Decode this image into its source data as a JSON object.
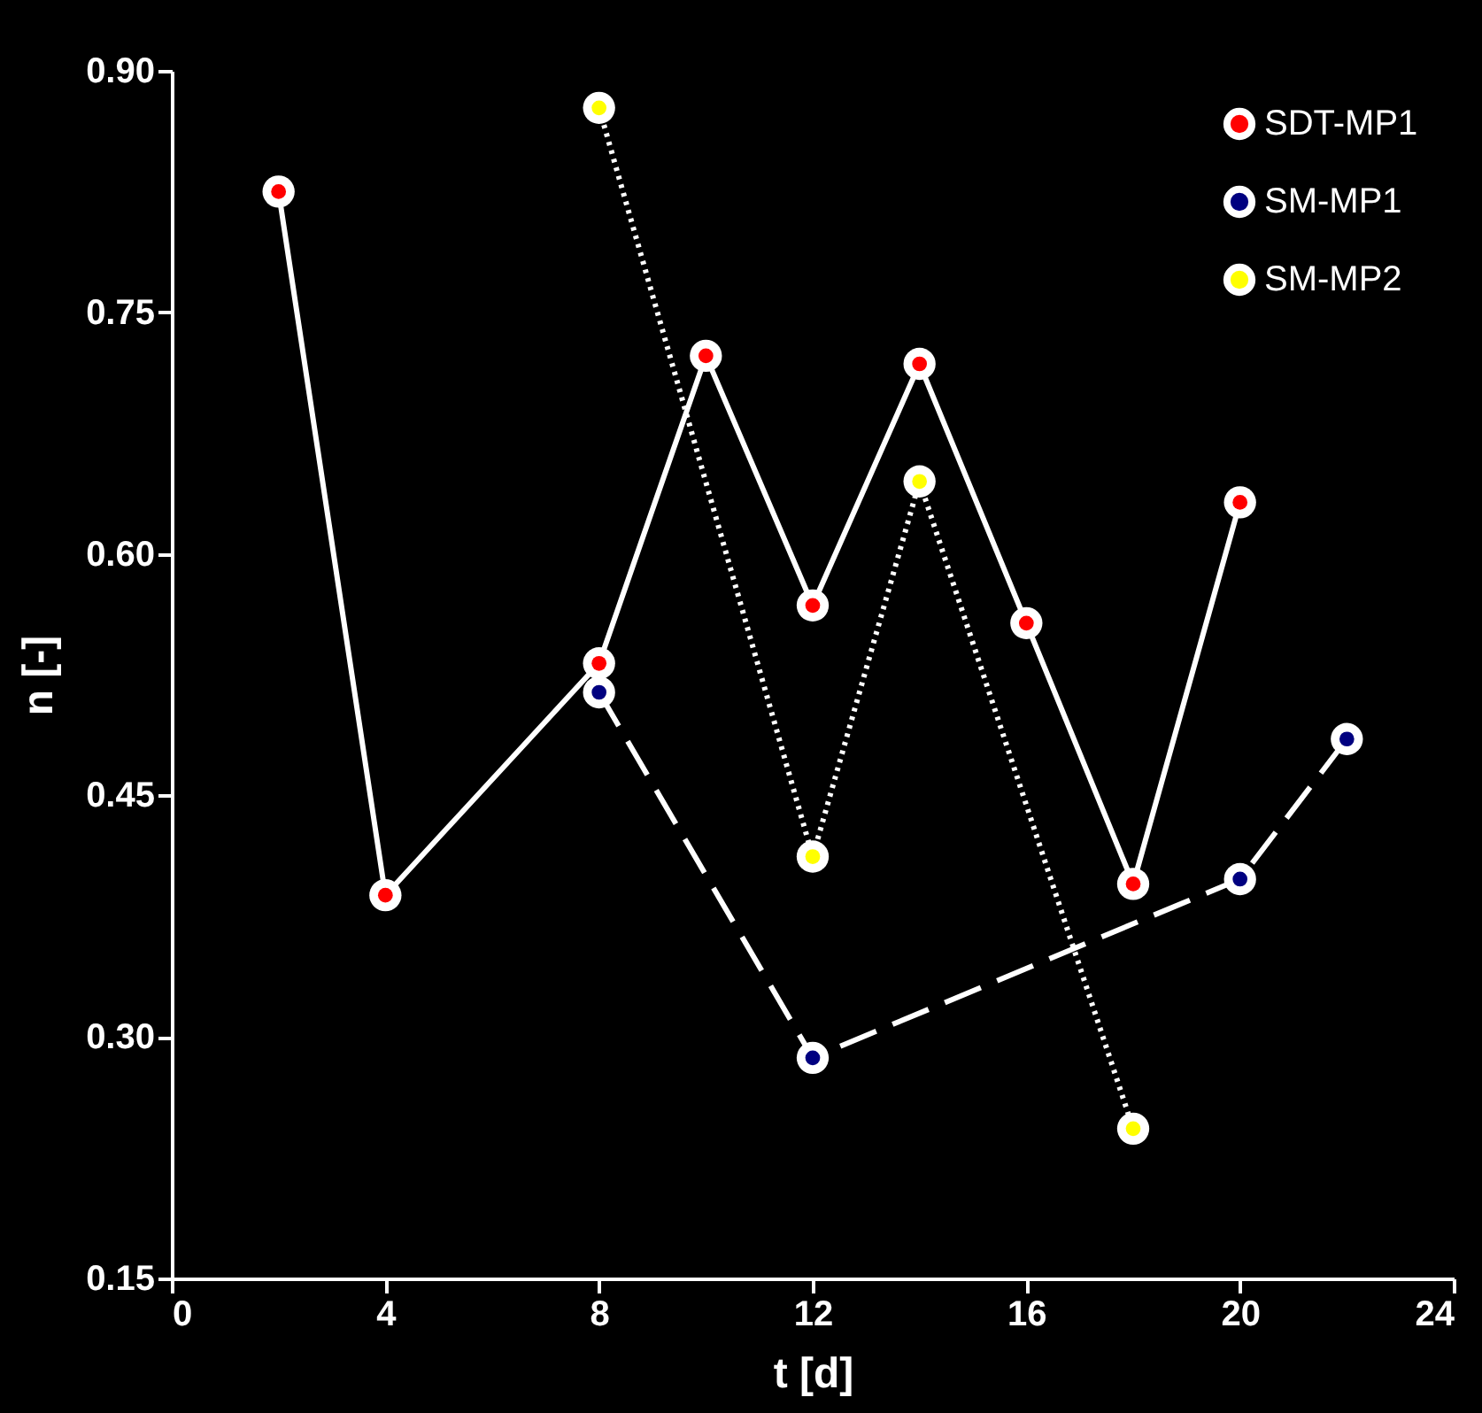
{
  "chart_data": {
    "type": "line",
    "xlabel": "t [d]",
    "ylabel": "n [-]",
    "xlim": [
      0,
      24
    ],
    "xticks": [
      0,
      4,
      8,
      12,
      16,
      20,
      24
    ],
    "ylim": [
      0.15,
      0.9
    ],
    "yticks": [
      {
        "value": 0.15,
        "label": "0.15"
      },
      {
        "value": 0.3,
        "label": "0.30"
      },
      {
        "value": 0.45,
        "label": "0.45"
      },
      {
        "value": 0.6,
        "label": "0.60"
      },
      {
        "value": 0.75,
        "label": "0.75"
      },
      {
        "value": 0.9,
        "label": "0.90"
      }
    ],
    "grid": false,
    "legend": "top right",
    "marker": "circle",
    "series": [
      {
        "name": "SDT-MP1",
        "color": "#ff0000",
        "line_style": "solid",
        "x": [
          2,
          4,
          8,
          10,
          12,
          14,
          16,
          18,
          20
        ],
        "values": [
          0.825,
          0.388,
          0.532,
          0.723,
          0.568,
          0.718,
          0.557,
          0.395,
          0.632
        ]
      },
      {
        "name": "SM-MP1",
        "color": "#000080",
        "line_style": "dashed",
        "x": [
          8,
          12,
          20,
          22
        ],
        "values": [
          0.514,
          0.287,
          0.398,
          0.485
        ]
      },
      {
        "name": "SM-MP2",
        "color": "#ffff00",
        "line_style": "dotted",
        "x": [
          8,
          12,
          14,
          18
        ],
        "values": [
          0.877,
          0.412,
          0.645,
          0.243
        ]
      }
    ]
  }
}
